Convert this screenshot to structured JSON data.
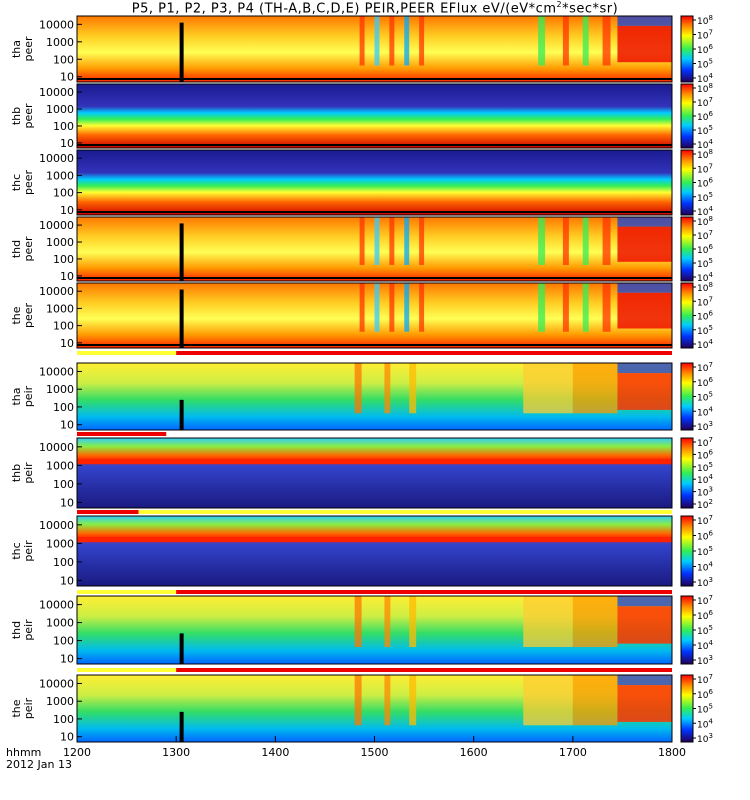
{
  "title": "P5, P1, P2, P3, P4 (TH-A,B,C,D,E) PEIR,PEER EFlux eV/(eV*cm",
  "title_sup": "2",
  "title_end": "*sec*sr)",
  "x_axis": {
    "label_line1": "hhmm",
    "label_line2": "2012 Jan 13",
    "ticks": [
      "1200",
      "1300",
      "1400",
      "1500",
      "1600",
      "1700",
      "1800"
    ]
  },
  "chart_data": [
    {
      "type": "heatmap",
      "probe": "tha",
      "species": "peer",
      "ylabel": [
        "tha",
        "peer"
      ],
      "yticks": [
        "10000",
        "1000",
        "100",
        "10"
      ],
      "ylim": [
        5,
        30000
      ],
      "yscale": "log",
      "colorbar_ticks": [
        "8",
        "7",
        "6",
        "5",
        "4"
      ],
      "colorbar_range": [
        10000,
        100000000
      ],
      "xlim": [
        1200,
        1800
      ]
    },
    {
      "type": "heatmap",
      "probe": "thb",
      "species": "peer",
      "ylabel": [
        "thb",
        "peer"
      ],
      "yticks": [
        "10000",
        "1000",
        "100",
        "10"
      ],
      "ylim": [
        5,
        30000
      ],
      "yscale": "log",
      "colorbar_ticks": [
        "8",
        "7",
        "6",
        "5",
        "4"
      ],
      "colorbar_range": [
        10000,
        100000000
      ],
      "xlim": [
        1200,
        1800
      ]
    },
    {
      "type": "heatmap",
      "probe": "thc",
      "species": "peer",
      "ylabel": [
        "thc",
        "peer"
      ],
      "yticks": [
        "10000",
        "1000",
        "100",
        "10"
      ],
      "ylim": [
        5,
        30000
      ],
      "yscale": "log",
      "colorbar_ticks": [
        "8",
        "7",
        "6",
        "5",
        "4"
      ],
      "colorbar_range": [
        10000,
        100000000
      ],
      "xlim": [
        1200,
        1800
      ]
    },
    {
      "type": "heatmap",
      "probe": "thd",
      "species": "peer",
      "ylabel": [
        "thd",
        "peer"
      ],
      "yticks": [
        "10000",
        "1000",
        "100",
        "10"
      ],
      "ylim": [
        5,
        30000
      ],
      "yscale": "log",
      "colorbar_ticks": [
        "8",
        "7",
        "6",
        "5",
        "4"
      ],
      "colorbar_range": [
        10000,
        100000000
      ],
      "xlim": [
        1200,
        1800
      ]
    },
    {
      "type": "heatmap",
      "probe": "the",
      "species": "peer",
      "ylabel": [
        "the",
        "peer"
      ],
      "yticks": [
        "10000",
        "1000",
        "100",
        "10"
      ],
      "ylim": [
        5,
        30000
      ],
      "yscale": "log",
      "colorbar_ticks": [
        "8",
        "7",
        "6",
        "5",
        "4"
      ],
      "colorbar_range": [
        10000,
        100000000
      ],
      "xlim": [
        1200,
        1800
      ]
    },
    {
      "type": "heatmap",
      "probe": "tha",
      "species": "peir",
      "ylabel": [
        "tha",
        "peir"
      ],
      "yticks": [
        "10000",
        "1000",
        "100",
        "10"
      ],
      "ylim": [
        5,
        30000
      ],
      "yscale": "log",
      "colorbar_ticks": [
        "7",
        "6",
        "5",
        "4",
        "3"
      ],
      "colorbar_range": [
        1000,
        10000000
      ],
      "xlim": [
        1200,
        1800
      ]
    },
    {
      "type": "heatmap",
      "probe": "thb",
      "species": "peir",
      "ylabel": [
        "thb",
        "peir"
      ],
      "yticks": [
        "10000",
        "1000",
        "100",
        "10"
      ],
      "ylim": [
        5,
        30000
      ],
      "yscale": "log",
      "colorbar_ticks": [
        "7",
        "6",
        "5",
        "4",
        "3",
        "2"
      ],
      "colorbar_range": [
        100,
        10000000
      ],
      "xlim": [
        1200,
        1800
      ]
    },
    {
      "type": "heatmap",
      "probe": "thc",
      "species": "peir",
      "ylabel": [
        "thc",
        "peir"
      ],
      "yticks": [
        "10000",
        "1000",
        "100",
        "10"
      ],
      "ylim": [
        5,
        30000
      ],
      "yscale": "log",
      "colorbar_ticks": [
        "7",
        "6",
        "5",
        "4",
        "3"
      ],
      "colorbar_range": [
        1000,
        10000000
      ],
      "xlim": [
        1200,
        1800
      ]
    },
    {
      "type": "heatmap",
      "probe": "thd",
      "species": "peir",
      "ylabel": [
        "thd",
        "peir"
      ],
      "yticks": [
        "10000",
        "1000",
        "100",
        "10"
      ],
      "ylim": [
        5,
        30000
      ],
      "yscale": "log",
      "colorbar_ticks": [
        "7",
        "6",
        "5",
        "4",
        "3"
      ],
      "colorbar_range": [
        1000,
        10000000
      ],
      "xlim": [
        1200,
        1800
      ]
    },
    {
      "type": "heatmap",
      "probe": "the",
      "species": "peir",
      "ylabel": [
        "the",
        "peir"
      ],
      "yticks": [
        "10000",
        "1000",
        "100",
        "10"
      ],
      "ylim": [
        5,
        30000
      ],
      "yscale": "log",
      "colorbar_ticks": [
        "7",
        "6",
        "5",
        "4",
        "3"
      ],
      "colorbar_range": [
        1000,
        10000000
      ],
      "xlim": [
        1200,
        1800
      ]
    }
  ],
  "colors": {
    "red": "#ff0000",
    "orange": "#ff9900",
    "yellow": "#ffff33",
    "green": "#33dd55",
    "cyan": "#00ccff",
    "blue": "#0033ff",
    "navy": "#1a1a8c",
    "black": "#000000"
  }
}
